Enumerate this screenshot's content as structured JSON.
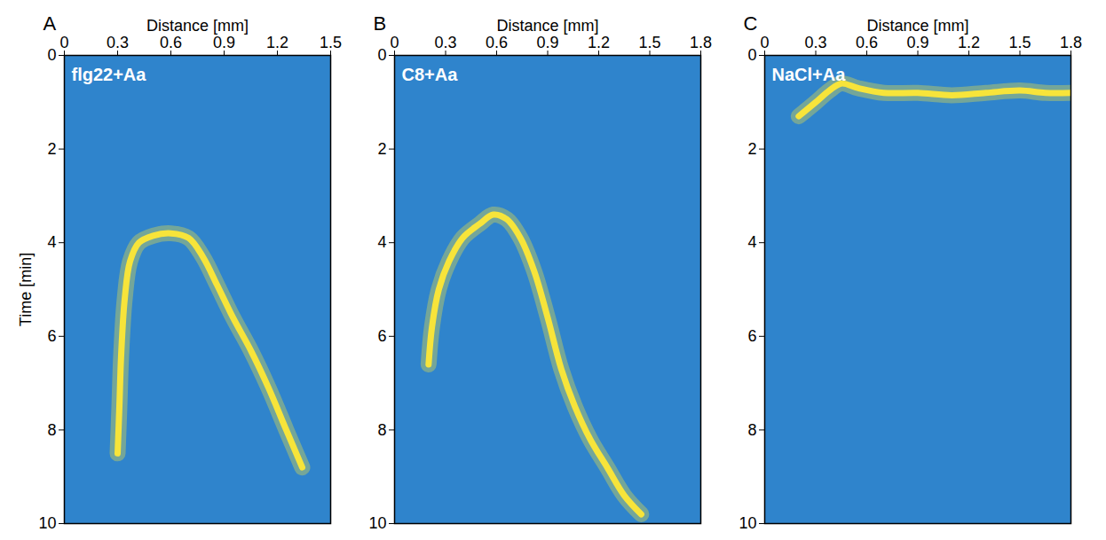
{
  "chart_data": [
    {
      "type": "line",
      "panel_label": "A",
      "title": "flg22+Aa",
      "x_label": "Distance [mm]",
      "y_label": "Time [min]",
      "x": [
        0.3,
        0.31,
        0.32,
        0.34,
        0.37,
        0.42,
        0.5,
        0.6,
        0.7,
        0.78,
        0.86,
        0.95,
        1.05,
        1.15,
        1.25,
        1.34
      ],
      "values": [
        8.5,
        7.5,
        6.4,
        5.2,
        4.4,
        4.0,
        3.85,
        3.8,
        3.9,
        4.3,
        4.9,
        5.6,
        6.3,
        7.1,
        8.0,
        8.8
      ],
      "color": "#f7e43a",
      "xlim": [
        0,
        1.5
      ],
      "xticks": [
        0,
        0.3,
        0.6,
        0.9,
        1.2,
        1.5
      ],
      "ylim": [
        0,
        10
      ],
      "yticks": [
        0,
        2,
        4,
        6,
        8,
        10
      ]
    },
    {
      "type": "line",
      "panel_label": "B",
      "title": "C8+Aa",
      "x": [
        0.2,
        0.22,
        0.26,
        0.32,
        0.4,
        0.5,
        0.58,
        0.66,
        0.74,
        0.82,
        0.9,
        0.98,
        1.06,
        1.15,
        1.25,
        1.35,
        1.45
      ],
      "values": [
        6.6,
        5.8,
        5.0,
        4.4,
        3.9,
        3.6,
        3.4,
        3.5,
        3.9,
        4.6,
        5.6,
        6.7,
        7.5,
        8.2,
        8.8,
        9.4,
        9.8
      ],
      "color": "#f7e43a",
      "xlim": [
        0,
        1.8
      ],
      "xticks": [
        0,
        0.3,
        0.6,
        0.9,
        1.2,
        1.5,
        1.8
      ],
      "ylim": [
        0,
        10
      ],
      "yticks": [
        0,
        2,
        4,
        6,
        8,
        10
      ]
    },
    {
      "type": "line",
      "panel_label": "C",
      "title": "NaCl+Aa",
      "x": [
        0.2,
        0.3,
        0.38,
        0.45,
        0.55,
        0.7,
        0.9,
        1.1,
        1.3,
        1.5,
        1.65,
        1.8
      ],
      "values": [
        1.3,
        1.0,
        0.75,
        0.6,
        0.7,
        0.8,
        0.8,
        0.85,
        0.8,
        0.75,
        0.8,
        0.8
      ],
      "color": "#f7e43a",
      "xlim": [
        0,
        1.8
      ],
      "xticks": [
        0,
        0.3,
        0.6,
        0.9,
        1.2,
        1.5,
        1.8
      ],
      "ylim": [
        0,
        10
      ],
      "yticks": [
        0,
        2,
        4,
        6,
        8,
        10
      ]
    }
  ]
}
